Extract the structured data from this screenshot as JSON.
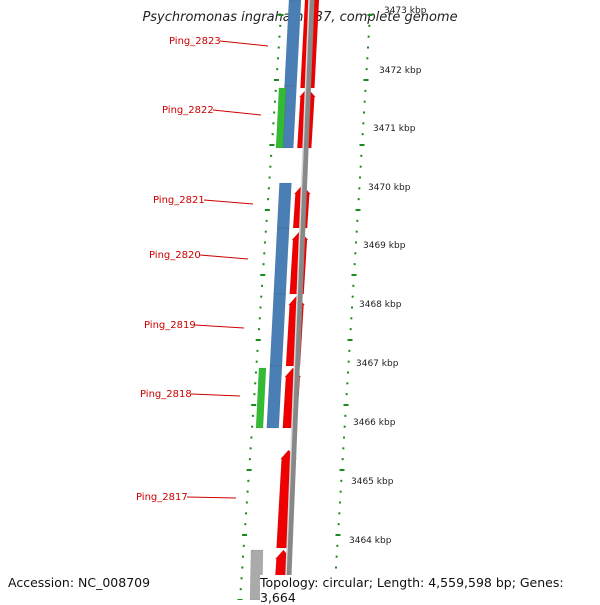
{
  "title": "Psychromonas ingrahamii 37, complete genome",
  "accession": "Accession: NC_008709",
  "topology": "Topology: circular; Length: 4,559,598 bp; Genes: 3,664",
  "colors": {
    "cds": "#ee0000",
    "gene": "#4a7fb5",
    "rna": "#33bb33",
    "other": "#aaaaaa",
    "backbone": "#888888",
    "skew": "#1a8a1a",
    "label": "#cc0000"
  },
  "scale_labels": [
    "3473 kbp",
    "3472 kbp",
    "3471 kbp",
    "3470 kbp",
    "3469 kbp",
    "3468 kbp",
    "3467 kbp",
    "3466 kbp",
    "3465 kbp",
    "3464 kbp"
  ],
  "gene_labels": [
    "Ping_2823",
    "Ping_2822",
    "Ping_2821",
    "Ping_2820",
    "Ping_2819",
    "Ping_2818",
    "Ping_2817"
  ]
}
